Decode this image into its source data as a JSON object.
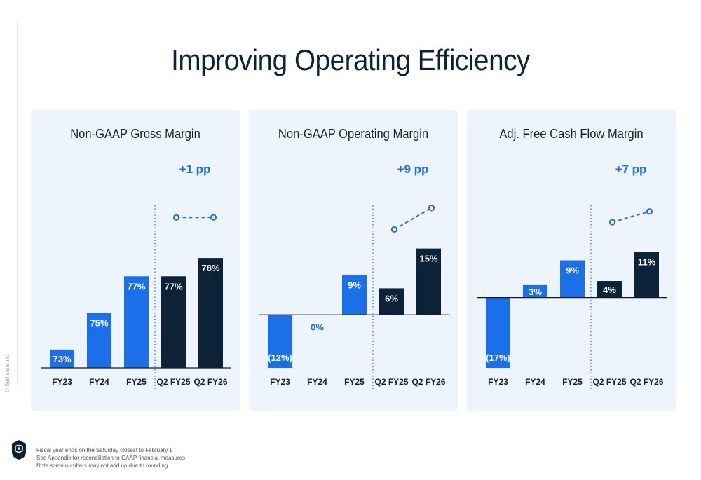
{
  "title": "Improving Operating Efficiency",
  "copyright": "© Samsara Inc.",
  "footnotes": [
    "Fiscal year ends on the Saturday closest to February 1",
    "See Appendix for reconciliation to GAAP financial measures",
    "Note some numbers may not add up due to rounding"
  ],
  "colors": {
    "blue": "#1b6fe8",
    "navy": "#0b2238",
    "delta": "#1b6fe8",
    "panel": "#eef4fc"
  },
  "chart_data": [
    {
      "type": "bar",
      "title": "Non-GAAP Gross Margin",
      "categories": [
        "FY23",
        "FY24",
        "FY25",
        "Q2 FY25",
        "Q2 FY26"
      ],
      "values": [
        73,
        75,
        77,
        77,
        78
      ],
      "labels": [
        "73%",
        "75%",
        "77%",
        "77%",
        "78%"
      ],
      "bar_colors": [
        "blue",
        "blue",
        "blue",
        "navy",
        "navy"
      ],
      "baseline": 72,
      "ylim": [
        72,
        79
      ],
      "delta_label": "+1 pp"
    },
    {
      "type": "bar",
      "title": "Non-GAAP Operating Margin",
      "categories": [
        "FY23",
        "FY24",
        "FY25",
        "Q2 FY25",
        "Q2 FY26"
      ],
      "values": [
        -12,
        0,
        9,
        6,
        15
      ],
      "labels": [
        "(12%)",
        "0%",
        "9%",
        "6%",
        "15%"
      ],
      "bar_colors": [
        "blue",
        "blue",
        "blue",
        "navy",
        "navy"
      ],
      "baseline": 0,
      "ylim": [
        -12,
        17
      ],
      "delta_label": "+9 pp"
    },
    {
      "type": "bar",
      "title": "Adj. Free Cash Flow Margin",
      "categories": [
        "FY23",
        "FY24",
        "FY25",
        "Q2 FY25",
        "Q2 FY26"
      ],
      "values": [
        -17,
        3,
        9,
        4,
        11
      ],
      "labels": [
        "(17%)",
        "3%",
        "9%",
        "4%",
        "11%"
      ],
      "bar_colors": [
        "blue",
        "blue",
        "blue",
        "navy",
        "navy"
      ],
      "baseline": 0,
      "ylim": [
        -17,
        14
      ],
      "delta_label": "+7 pp"
    }
  ]
}
